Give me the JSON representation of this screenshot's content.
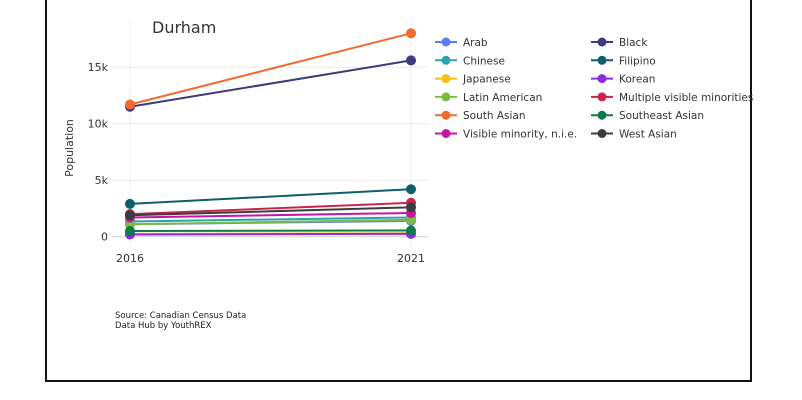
{
  "chart_data": {
    "type": "line",
    "title": "Durham",
    "xlabel": "",
    "ylabel": "Population",
    "x": [
      "2016",
      "2021"
    ],
    "ylim": [
      -1000,
      19000
    ],
    "yticks": [
      0,
      5000,
      10000,
      15000
    ],
    "ytick_labels": [
      "0",
      "5k",
      "10k",
      "15k"
    ],
    "grid": true,
    "legend_position": "right",
    "series": [
      {
        "name": "Arab",
        "color": "#5b7bf5",
        "values": [
          1100,
          1400
        ]
      },
      {
        "name": "Black",
        "color": "#3b3b7e",
        "values": [
          11500,
          15600
        ]
      },
      {
        "name": "Chinese",
        "color": "#2aa3b0",
        "values": [
          1350,
          1700
        ]
      },
      {
        "name": "Filipino",
        "color": "#0e5f6b",
        "values": [
          2900,
          4200
        ]
      },
      {
        "name": "Japanese",
        "color": "#f3c014",
        "values": [
          250,
          300
        ]
      },
      {
        "name": "Korean",
        "color": "#8c2be2",
        "values": [
          200,
          250
        ]
      },
      {
        "name": "Latin American",
        "color": "#7cbb3f",
        "values": [
          1100,
          1500
        ]
      },
      {
        "name": "Multiple visible minorities",
        "color": "#c8254a",
        "values": [
          2000,
          3000
        ]
      },
      {
        "name": "South Asian",
        "color": "#f26a2e",
        "values": [
          11700,
          18000
        ]
      },
      {
        "name": "Southeast Asian",
        "color": "#0e7a4a",
        "values": [
          500,
          550
        ]
      },
      {
        "name": "Visible minority, n.i.e.",
        "color": "#c614a8",
        "values": [
          1700,
          2100
        ]
      },
      {
        "name": "West Asian",
        "color": "#3c3c3c",
        "values": [
          1900,
          2600
        ]
      }
    ]
  },
  "source": {
    "line1": "Source: Canadian Census Data",
    "line2": "Data Hub by YouthREX"
  }
}
